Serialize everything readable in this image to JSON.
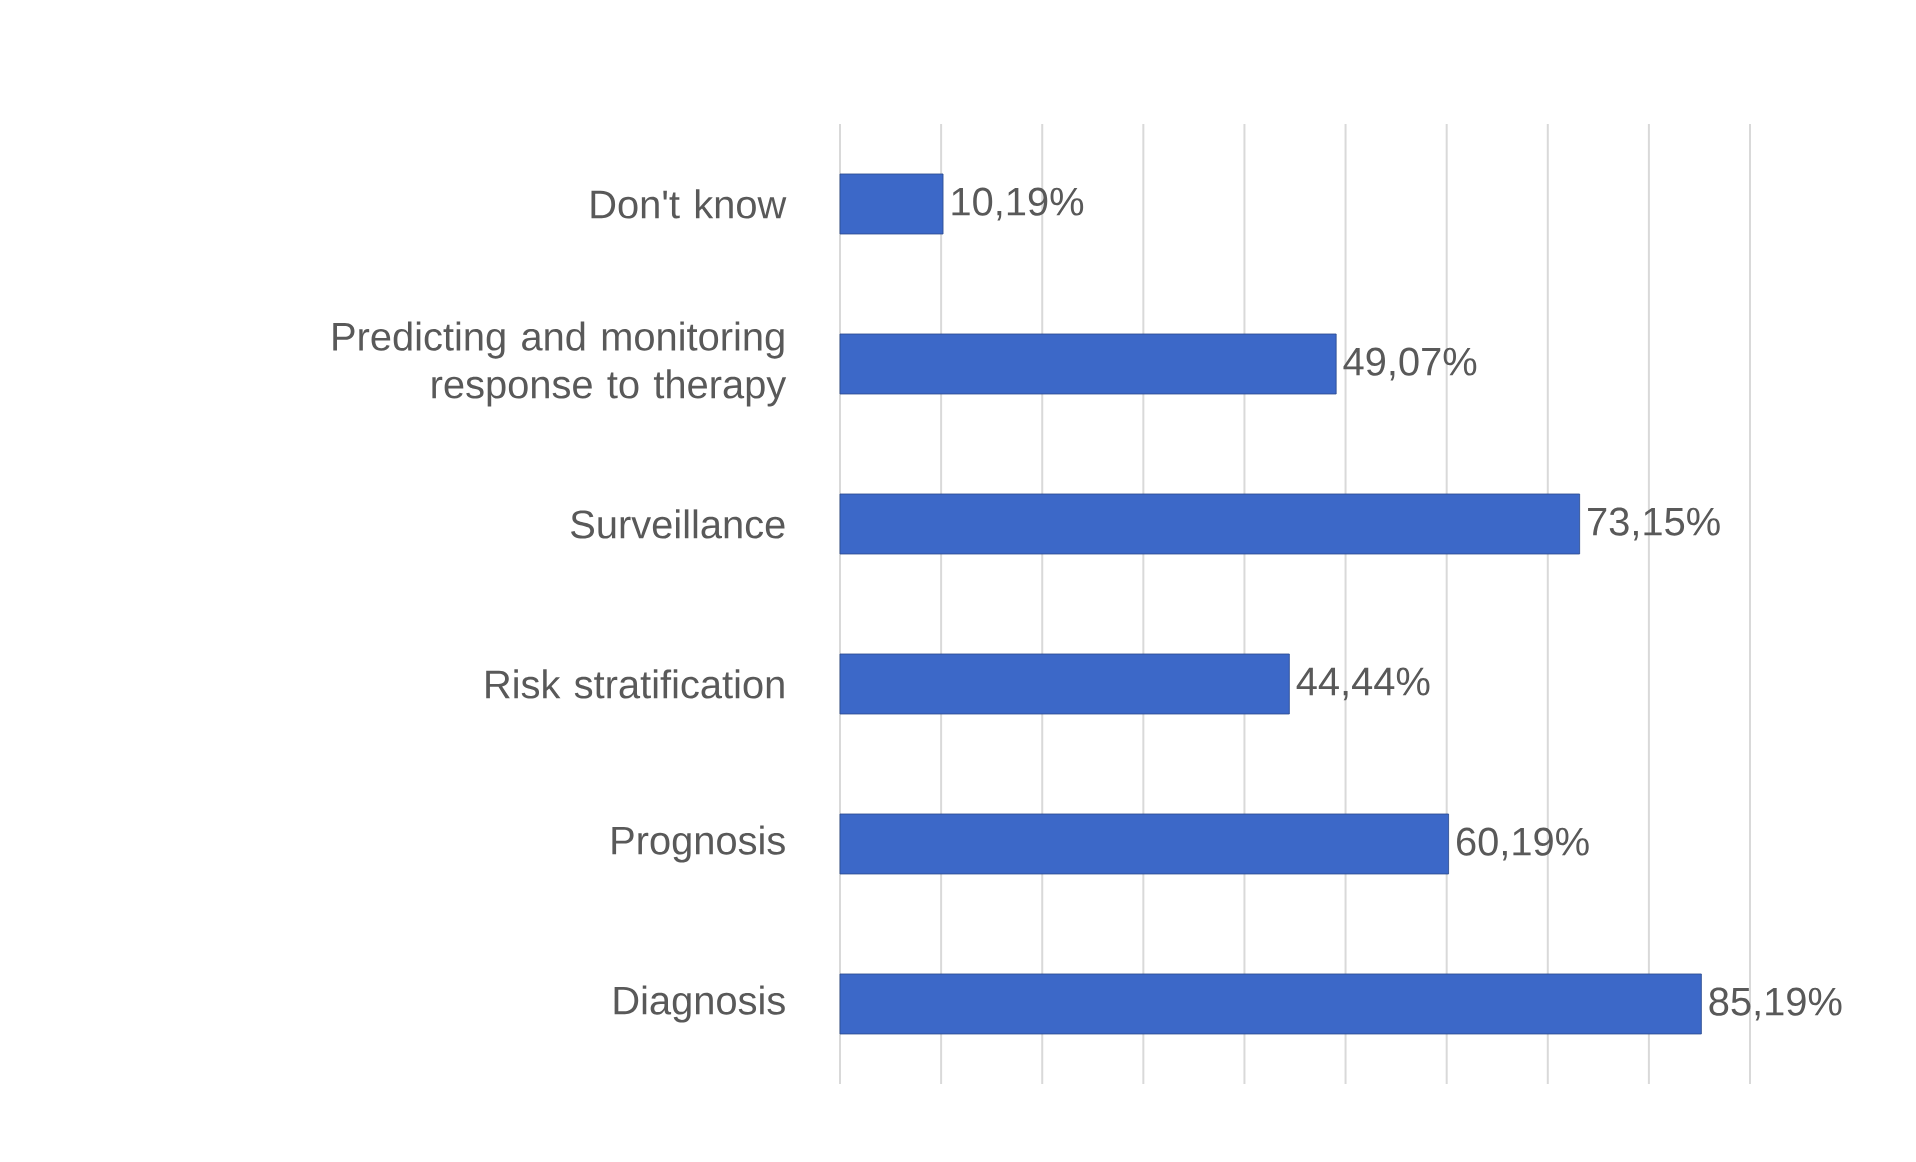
{
  "chart_data": {
    "type": "bar",
    "orientation": "horizontal",
    "categories": [
      "Don't know",
      "Predicting and monitoring response to therapy",
      "Surveillance",
      "Risk stratification",
      "Prognosis",
      "Diagnosis"
    ],
    "values": [
      10.19,
      49.07,
      73.15,
      44.44,
      60.19,
      85.19
    ],
    "value_labels": [
      "10,19%",
      "49,07%",
      "73,15%",
      "44,44%",
      "60,19%",
      "85,19%"
    ],
    "color": "#3c68c8",
    "xlim": [
      0,
      90
    ],
    "xticks": [
      {
        "value": 0,
        "label": null
      },
      {
        "value": 10,
        "label": null
      },
      {
        "value": 20,
        "label": null
      },
      {
        "value": 30,
        "label": null
      },
      {
        "value": 40,
        "label": null
      },
      {
        "value": 50,
        "label": null
      },
      {
        "value": 60,
        "label": null
      },
      {
        "value": 70,
        "label": null
      },
      {
        "value": 80,
        "label": null
      },
      {
        "value": 90,
        "label": null
      }
    ],
    "grid": "x",
    "tick_labels": "y"
  }
}
